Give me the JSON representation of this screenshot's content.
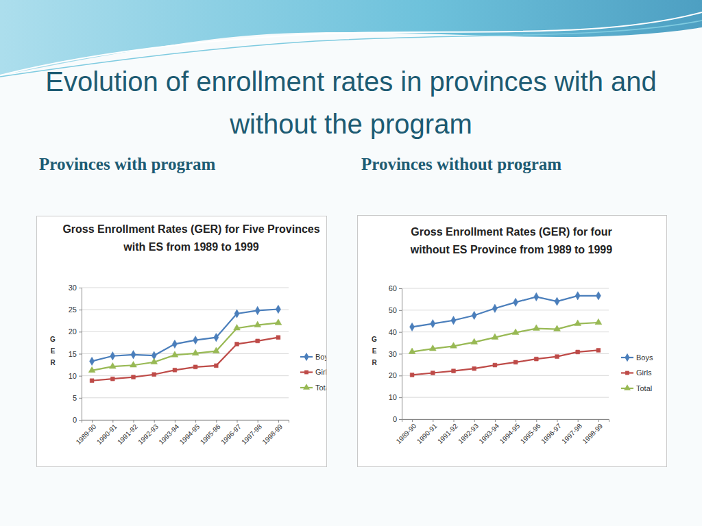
{
  "slide": {
    "title": "Evolution of enrollment rates in provinces with and without the program",
    "headings": [
      "Provinces with program",
      "Provinces without program"
    ]
  },
  "chart_data": [
    {
      "type": "line",
      "title": "Gross Enrollment Rates (GER) for Five Provinces with ES from 1989 to 1999",
      "ylabel": "GER",
      "categories": [
        "1989-90",
        "1990-91",
        "1991-92",
        "1992-93",
        "1993-94",
        "1994-95",
        "1995-96",
        "1996-97",
        "1997-98",
        "1998-99"
      ],
      "series": [
        {
          "name": "Boys",
          "color": "#4a7ebb",
          "marker": "diamond",
          "values": [
            13.3,
            14.5,
            14.8,
            14.6,
            17.2,
            18.1,
            18.7,
            24.1,
            24.8,
            25.1
          ]
        },
        {
          "name": "Girls",
          "color": "#be4b48",
          "marker": "square",
          "values": [
            8.9,
            9.3,
            9.7,
            10.3,
            11.3,
            12.0,
            12.3,
            17.2,
            17.9,
            18.7
          ]
        },
        {
          "name": "Total",
          "color": "#98b954",
          "marker": "triangle",
          "values": [
            11.2,
            12.1,
            12.4,
            13.1,
            14.7,
            15.1,
            15.6,
            20.8,
            21.5,
            22.0
          ]
        }
      ],
      "ylim": [
        0,
        30
      ],
      "yticks": [
        0,
        5,
        10,
        15,
        20,
        25,
        30
      ],
      "grid": true,
      "legend": "right"
    },
    {
      "type": "line",
      "title": "Gross Enrollment Rates (GER) for four without ES Province from 1989 to 1999",
      "ylabel": "GER",
      "categories": [
        "1989-90",
        "1990-91",
        "1991-92",
        "1992-93",
        "1993-94",
        "1994-95",
        "1995-96",
        "1996-97",
        "1997-98",
        "1998-99"
      ],
      "series": [
        {
          "name": "Boys",
          "color": "#4a7ebb",
          "marker": "diamond",
          "values": [
            42.3,
            43.8,
            45.3,
            47.6,
            50.8,
            53.6,
            56.1,
            54.0,
            56.6,
            56.6
          ]
        },
        {
          "name": "Girls",
          "color": "#be4b48",
          "marker": "square",
          "values": [
            20.3,
            21.2,
            22.1,
            23.2,
            24.8,
            26.1,
            27.6,
            28.7,
            30.8,
            31.6
          ]
        },
        {
          "name": "Total",
          "color": "#98b954",
          "marker": "triangle",
          "values": [
            30.9,
            32.3,
            33.5,
            35.3,
            37.5,
            39.7,
            41.6,
            41.3,
            43.8,
            44.3
          ]
        }
      ],
      "ylim": [
        0,
        60
      ],
      "yticks": [
        0,
        10,
        20,
        30,
        40,
        50,
        60
      ],
      "grid": true,
      "legend": "right"
    }
  ]
}
